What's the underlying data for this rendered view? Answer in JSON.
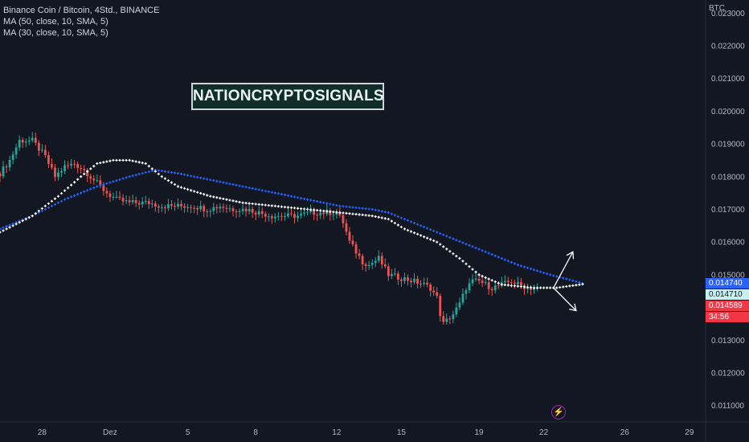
{
  "header": {
    "title": "Binance Coin / Bitcoin, 4Std., BINANCE",
    "indicators": [
      "MA (50, close, 10, SMA, 5)",
      "MA (30, close, 10, SMA, 5)"
    ],
    "currency": "BTC"
  },
  "watermark": "NATIONCRYPTOSIGNALS",
  "price_badges": [
    {
      "label": "0.014740",
      "value": 0.01474,
      "bg": "#2962ff",
      "fg": "#ffffff"
    },
    {
      "label": "0.014710",
      "value": 0.01471,
      "bg": "#c8f0f0",
      "fg": "#131722"
    },
    {
      "label": "0.014589",
      "value": 0.014589,
      "bg": "#f23645",
      "fg": "#ffffff"
    },
    {
      "label": "34:56",
      "value": 0.014589,
      "bg": "#f23645",
      "fg": "#ffffff",
      "countdown": true
    }
  ],
  "colors": {
    "bg": "#131722",
    "up": "#26a69a",
    "down": "#ef5350",
    "ma50": "#2962ff",
    "ma30": "#ffffff",
    "grid": "#1c2030"
  },
  "icons": {
    "bolt": "lightning-bolt-icon"
  },
  "chart_data": {
    "type": "candlestick",
    "title": "Binance Coin / Bitcoin, 4Std., BINANCE",
    "xlabel": "",
    "ylabel": "",
    "x_ticks": [
      "28",
      "Dez",
      "5",
      "8",
      "12",
      "15",
      "19",
      "22",
      "26",
      "29"
    ],
    "x_tick_index": [
      13,
      34,
      58,
      79,
      104,
      124,
      148,
      168,
      193,
      213
    ],
    "y_ticks": [
      0.011,
      0.012,
      0.013,
      0.014,
      0.015,
      0.016,
      0.017,
      0.018,
      0.019,
      0.02,
      0.021,
      0.022,
      0.023
    ],
    "ylim": [
      0.0105,
      0.0234
    ],
    "x_range": [
      0,
      218
    ],
    "grid": false,
    "candle_anchors": [
      [
        0,
        0.0181
      ],
      [
        3,
        0.0185
      ],
      [
        6,
        0.0191
      ],
      [
        10,
        0.0191
      ],
      [
        14,
        0.0186
      ],
      [
        17,
        0.018
      ],
      [
        20,
        0.0183
      ],
      [
        23,
        0.0184
      ],
      [
        26,
        0.0182
      ],
      [
        30,
        0.0178
      ],
      [
        33,
        0.0175
      ],
      [
        36,
        0.0173
      ],
      [
        40,
        0.0172
      ],
      [
        46,
        0.0172
      ],
      [
        50,
        0.0171
      ],
      [
        55,
        0.0171
      ],
      [
        60,
        0.0171
      ],
      [
        64,
        0.017
      ],
      [
        68,
        0.0171
      ],
      [
        72,
        0.017
      ],
      [
        76,
        0.017
      ],
      [
        80,
        0.0169
      ],
      [
        84,
        0.0168
      ],
      [
        88,
        0.0168
      ],
      [
        92,
        0.0168
      ],
      [
        96,
        0.0169
      ],
      [
        100,
        0.0169
      ],
      [
        104,
        0.0169
      ],
      [
        106,
        0.0166
      ],
      [
        108,
        0.016
      ],
      [
        110,
        0.0157
      ],
      [
        112,
        0.0154
      ],
      [
        114,
        0.0153
      ],
      [
        117,
        0.0155
      ],
      [
        120,
        0.015
      ],
      [
        124,
        0.0149
      ],
      [
        128,
        0.0148
      ],
      [
        131,
        0.0147
      ],
      [
        133,
        0.0146
      ],
      [
        135,
        0.0143
      ],
      [
        136,
        0.0138
      ],
      [
        137,
        0.0135
      ],
      [
        138,
        0.0136
      ],
      [
        140,
        0.0138
      ],
      [
        142,
        0.0141
      ],
      [
        144,
        0.0146
      ],
      [
        146,
        0.0148
      ],
      [
        148,
        0.0148
      ],
      [
        150,
        0.0147
      ],
      [
        152,
        0.0146
      ],
      [
        155,
        0.0147
      ],
      [
        158,
        0.0148
      ],
      [
        160,
        0.0147
      ],
      [
        163,
        0.0146
      ],
      [
        166,
        0.01459
      ]
    ],
    "series": [
      {
        "name": "MA (50, close, 10, SMA, 5)",
        "style": "cross",
        "color": "#2962ff",
        "points": [
          [
            0,
            0.0164
          ],
          [
            10,
            0.0168
          ],
          [
            20,
            0.0173
          ],
          [
            30,
            0.0177
          ],
          [
            40,
            0.018
          ],
          [
            48,
            0.0182
          ],
          [
            55,
            0.0181
          ],
          [
            65,
            0.0179
          ],
          [
            75,
            0.0177
          ],
          [
            85,
            0.0175
          ],
          [
            95,
            0.0173
          ],
          [
            105,
            0.0171
          ],
          [
            115,
            0.017
          ],
          [
            120,
            0.0169
          ],
          [
            130,
            0.0165
          ],
          [
            140,
            0.0161
          ],
          [
            150,
            0.0157
          ],
          [
            160,
            0.0153
          ],
          [
            170,
            0.015
          ],
          [
            180,
            0.01474
          ]
        ]
      },
      {
        "name": "MA (30, close, 10, SMA, 5)",
        "style": "cross",
        "color": "#ffffff",
        "points": [
          [
            0,
            0.0163
          ],
          [
            10,
            0.0168
          ],
          [
            18,
            0.0174
          ],
          [
            25,
            0.018
          ],
          [
            30,
            0.0184
          ],
          [
            35,
            0.0185
          ],
          [
            40,
            0.0185
          ],
          [
            45,
            0.0184
          ],
          [
            50,
            0.018
          ],
          [
            55,
            0.0177
          ],
          [
            65,
            0.0174
          ],
          [
            75,
            0.0172
          ],
          [
            85,
            0.0171
          ],
          [
            95,
            0.017
          ],
          [
            105,
            0.0169
          ],
          [
            115,
            0.0168
          ],
          [
            120,
            0.0167
          ],
          [
            125,
            0.0164
          ],
          [
            135,
            0.016
          ],
          [
            142,
            0.0155
          ],
          [
            148,
            0.015
          ],
          [
            155,
            0.0147
          ],
          [
            165,
            0.0146
          ],
          [
            172,
            0.0146
          ],
          [
            180,
            0.01471
          ]
        ]
      }
    ],
    "annotations": [
      {
        "type": "fork-arrows",
        "from": [
          171,
          0.0146
        ],
        "up_to": [
          177,
          0.0157
        ],
        "down_to": [
          178,
          0.0139
        ]
      }
    ]
  }
}
